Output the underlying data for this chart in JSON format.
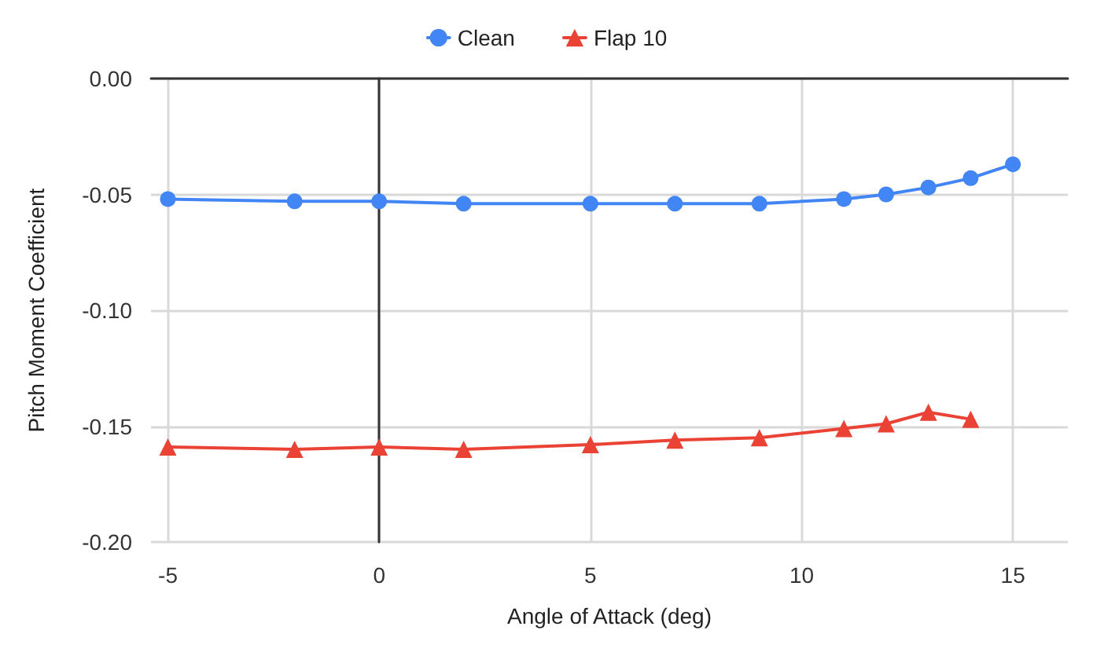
{
  "chart_data": {
    "type": "line",
    "xlabel": "Angle of Attack (deg)",
    "ylabel": "Pitch Moment Coefficient",
    "x": [
      -5,
      -2,
      0,
      2,
      5,
      7,
      9,
      11,
      12,
      13,
      14,
      15
    ],
    "series": [
      {
        "name": "Clean",
        "color": "#4285f4",
        "marker": "circle",
        "values": [
          -0.052,
          -0.053,
          -0.053,
          -0.054,
          -0.054,
          -0.054,
          -0.054,
          -0.052,
          -0.05,
          -0.047,
          -0.043,
          -0.037
        ]
      },
      {
        "name": "Flap 10",
        "color": "#ea4335",
        "marker": "triangle",
        "x": [
          -5,
          -2,
          0,
          2,
          5,
          7,
          9,
          11,
          12,
          13,
          14
        ],
        "values": [
          -0.159,
          -0.16,
          -0.159,
          -0.16,
          -0.158,
          -0.156,
          -0.155,
          -0.151,
          -0.149,
          -0.144,
          -0.147
        ]
      }
    ],
    "xlim": [
      -5.4,
      16.3
    ],
    "xticks": [
      -5,
      0,
      5,
      10,
      15
    ],
    "ylim": [
      -0.2,
      0
    ],
    "yticks": [
      {
        "value": -0.2,
        "label": "-0.20"
      },
      {
        "value": -0.15,
        "label": "-0.15"
      },
      {
        "value": -0.1,
        "label": "-0.10"
      },
      {
        "value": -0.05,
        "label": "-0.05"
      },
      {
        "value": 0,
        "label": "0.00"
      }
    ],
    "grid": true,
    "legend": "top"
  }
}
